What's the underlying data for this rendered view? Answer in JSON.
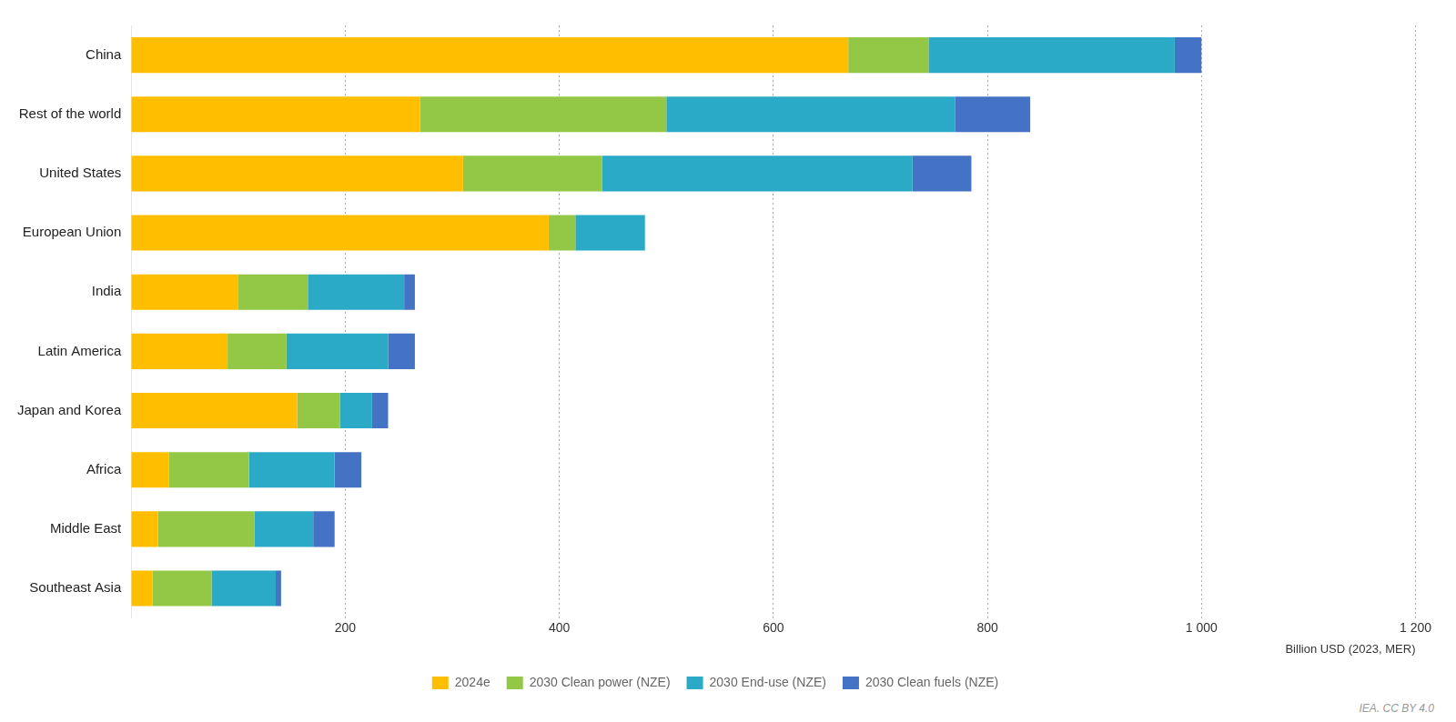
{
  "chart_data": {
    "type": "bar",
    "orientation": "horizontal",
    "stacked": true,
    "categories": [
      "China",
      "Rest of the world",
      "United States",
      "European Union",
      "India",
      "Latin America",
      "Japan and Korea",
      "Africa",
      "Middle East",
      "Southeast Asia"
    ],
    "series": [
      {
        "name": "2024e",
        "color": "#FFBF00",
        "values": [
          670,
          270,
          310,
          390,
          100,
          90,
          155,
          35,
          25,
          20
        ]
      },
      {
        "name": "2030 Clean power (NZE)",
        "color": "#92C846",
        "values": [
          75,
          230,
          130,
          25,
          65,
          55,
          40,
          75,
          90,
          55
        ]
      },
      {
        "name": "2030 End-use (NZE)",
        "color": "#2BAAC8",
        "values": [
          230,
          270,
          290,
          65,
          90,
          95,
          30,
          80,
          55,
          60
        ]
      },
      {
        "name": "2030 Clean fuels (NZE)",
        "color": "#4472C4",
        "values": [
          25,
          70,
          55,
          0,
          10,
          25,
          15,
          25,
          20,
          5
        ]
      }
    ],
    "xlabel": "Billion USD (2023, MER)",
    "xlim": [
      0,
      1200
    ],
    "xticks": [
      200,
      400,
      600,
      800,
      {
        "value": 1000,
        "label": "1 000"
      },
      {
        "value": 1200,
        "label": "1 200"
      }
    ],
    "grid": true,
    "legend": "bottom",
    "annotations": [
      "IEA. CC BY 4.0"
    ]
  }
}
